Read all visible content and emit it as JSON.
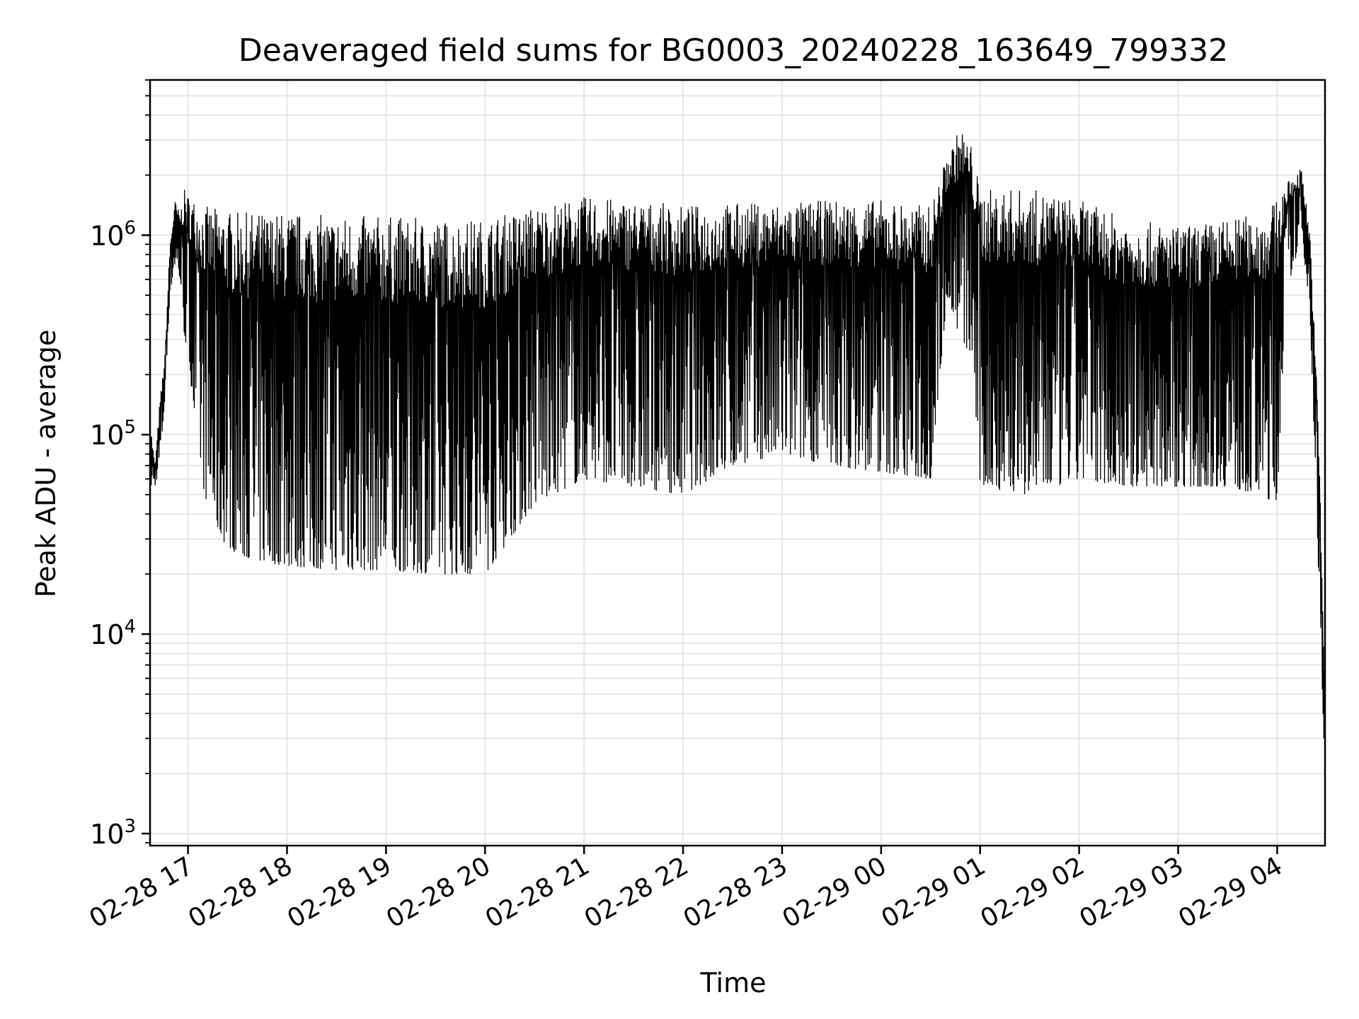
{
  "chart_data": {
    "type": "line",
    "title": "Deaveraged field sums for BG0003_20240228_163649_799332",
    "xlabel": "Time",
    "ylabel": "Peak ADU - average",
    "yscale": "log",
    "ylim": [
      870,
      6000000
    ],
    "xlim": [
      "2024-02-28T16:37:00",
      "2024-02-29T04:29:00"
    ],
    "grid": true,
    "line_color": "#000000",
    "grid_color": "#e6e6e6",
    "x_ticks": [
      {
        "t": "2024-02-28T17:00:00",
        "label": "02-28 17"
      },
      {
        "t": "2024-02-28T18:00:00",
        "label": "02-28 18"
      },
      {
        "t": "2024-02-28T19:00:00",
        "label": "02-28 19"
      },
      {
        "t": "2024-02-28T20:00:00",
        "label": "02-28 20"
      },
      {
        "t": "2024-02-28T21:00:00",
        "label": "02-28 21"
      },
      {
        "t": "2024-02-28T22:00:00",
        "label": "02-28 22"
      },
      {
        "t": "2024-02-28T23:00:00",
        "label": "02-28 23"
      },
      {
        "t": "2024-02-29T00:00:00",
        "label": "02-29 00"
      },
      {
        "t": "2024-02-29T01:00:00",
        "label": "02-29 01"
      },
      {
        "t": "2024-02-29T02:00:00",
        "label": "02-29 02"
      },
      {
        "t": "2024-02-29T03:00:00",
        "label": "02-29 03"
      },
      {
        "t": "2024-02-29T04:00:00",
        "label": "02-29 04"
      }
    ],
    "y_ticks": [
      {
        "value": 1000,
        "base": "10",
        "exp": "3"
      },
      {
        "value": 10000,
        "base": "10",
        "exp": "4"
      },
      {
        "value": 100000,
        "base": "10",
        "exp": "5"
      },
      {
        "value": 1000000,
        "base": "10",
        "exp": "6"
      }
    ],
    "series": [
      {
        "x": [
          "2024-02-28T16:37:00",
          "2024-02-28T16:40:00",
          "2024-02-28T16:43:00",
          "2024-02-28T16:46:00",
          "2024-02-28T16:49:00",
          "2024-02-28T16:52:00",
          "2024-02-28T16:55:00",
          "2024-02-28T16:58:00",
          "2024-02-28T17:00:00",
          "2024-02-28T17:05:00",
          "2024-02-28T17:10:00",
          "2024-02-28T17:20:00",
          "2024-02-28T17:30:00",
          "2024-02-28T17:45:00",
          "2024-02-28T18:00:00",
          "2024-02-28T18:30:00",
          "2024-02-28T19:00:00",
          "2024-02-28T19:30:00",
          "2024-02-28T20:00:00",
          "2024-02-28T20:30:00",
          "2024-02-28T21:00:00",
          "2024-02-28T21:30:00",
          "2024-02-28T22:00:00",
          "2024-02-28T22:30:00",
          "2024-02-28T23:00:00",
          "2024-02-28T23:30:00",
          "2024-02-29T00:00:00",
          "2024-02-29T00:30:00",
          "2024-02-29T00:40:00",
          "2024-02-29T00:48:00",
          "2024-02-29T00:55:00",
          "2024-02-29T01:00:00",
          "2024-02-29T01:30:00",
          "2024-02-29T02:00:00",
          "2024-02-29T02:30:00",
          "2024-02-29T03:00:00",
          "2024-02-29T03:30:00",
          "2024-02-29T03:50:00",
          "2024-02-29T04:00:00",
          "2024-02-29T04:05:00",
          "2024-02-29T04:15:00",
          "2024-02-29T04:20:00",
          "2024-02-29T04:25:00",
          "2024-02-29T04:29:00"
        ],
        "y_high": [
          120000,
          70000,
          150000,
          250000,
          900000,
          1500000,
          1300000,
          1700000,
          1600000,
          1500000,
          1400000,
          1350000,
          1300000,
          1300000,
          1300000,
          1250000,
          1250000,
          1200000,
          1200000,
          1400000,
          1550000,
          1500000,
          1400000,
          1450000,
          1450000,
          1500000,
          1500000,
          1400000,
          2500000,
          3500000,
          2800000,
          1700000,
          1700000,
          1500000,
          1200000,
          1100000,
          1200000,
          1300000,
          1500000,
          1800000,
          2200000,
          1000000,
          120000,
          5000
        ],
        "y_low": [
          55000,
          55000,
          70000,
          150000,
          500000,
          700000,
          600000,
          300000,
          250000,
          100000,
          50000,
          30000,
          25000,
          23000,
          22000,
          21000,
          21000,
          20000,
          20000,
          45000,
          60000,
          55000,
          50000,
          70000,
          80000,
          70000,
          65000,
          60000,
          500000,
          300000,
          250000,
          55000,
          50000,
          60000,
          55000,
          55000,
          55000,
          50000,
          45000,
          500000,
          1000000,
          400000,
          20000,
          2000
        ]
      }
    ]
  }
}
